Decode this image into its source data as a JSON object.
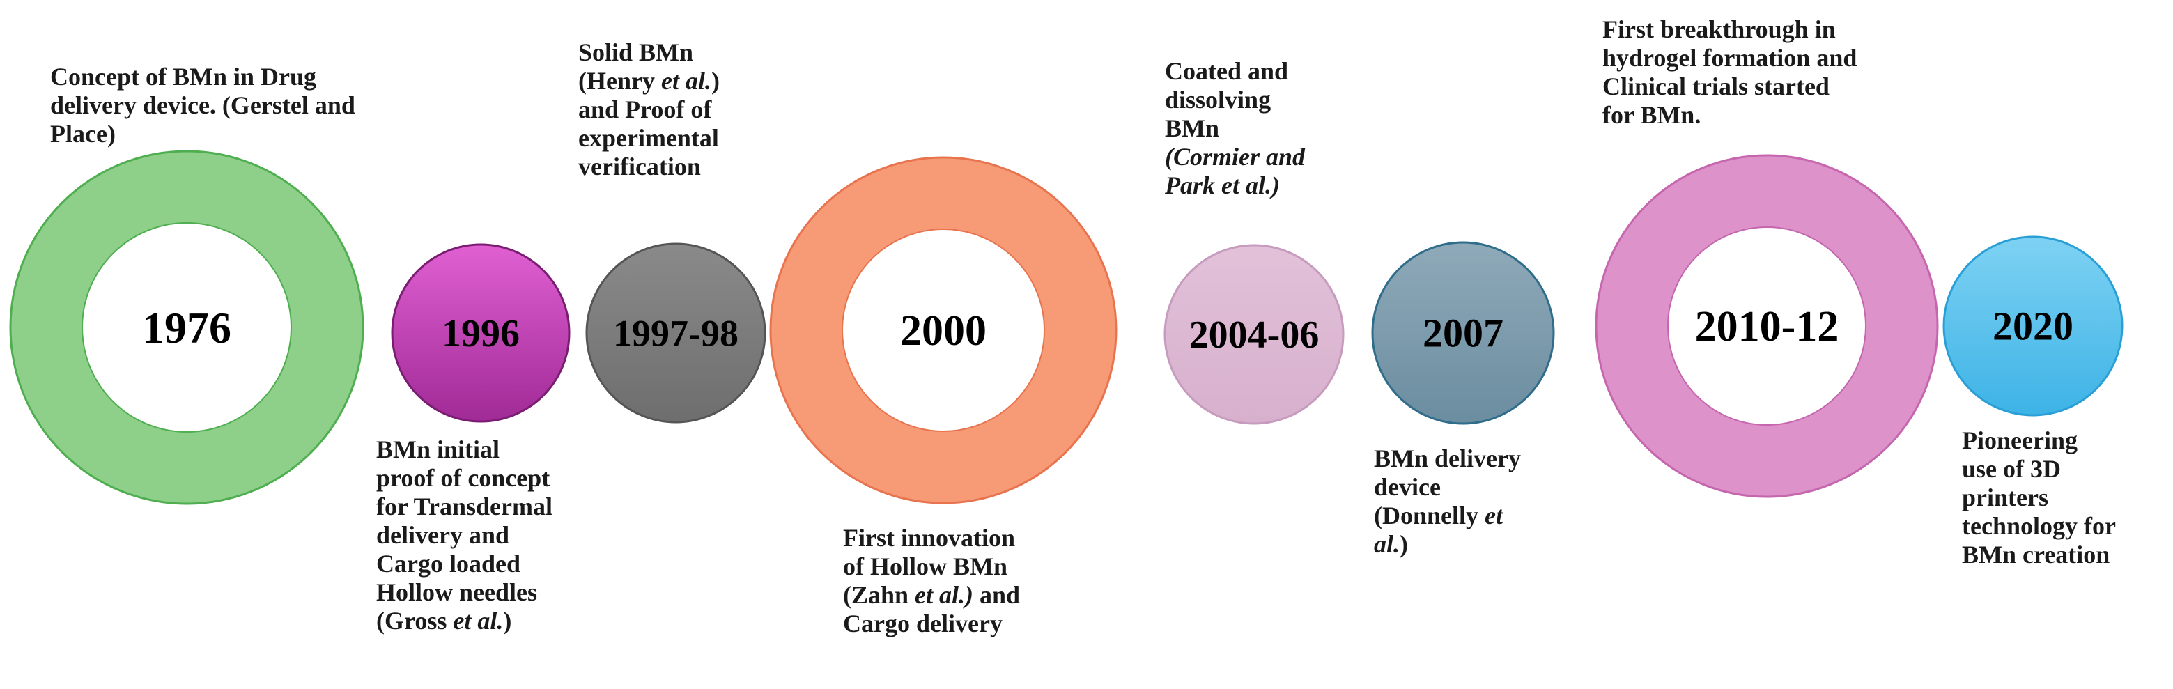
{
  "milestones": [
    {
      "year": "1976",
      "style": "ring",
      "color": "#8ed08a",
      "edge": "#4fae4f",
      "caption": {
        "lines": [
          [
            {
              "t": "Concept of BMn in Drug"
            }
          ],
          [
            {
              "t": "delivery device. (Gerstel and"
            }
          ],
          [
            {
              "t": "Place)"
            }
          ]
        ]
      }
    },
    {
      "year": "1996",
      "style": "disc",
      "color": "#a02a96",
      "color_light": "#e060d2",
      "edge": "#7a1c72",
      "caption": {
        "lines": [
          [
            {
              "t": "BMn initial"
            }
          ],
          [
            {
              "t": "proof of concept"
            }
          ],
          [
            {
              "t": "for Transdermal"
            }
          ],
          [
            {
              "t": "delivery and"
            }
          ],
          [
            {
              "t": "Cargo loaded"
            }
          ],
          [
            {
              "t": "Hollow needles"
            }
          ],
          [
            {
              "t": "(Gross "
            },
            {
              "t": "et al.",
              "i": true
            },
            {
              "t": ")"
            }
          ]
        ]
      }
    },
    {
      "year": "1997-98",
      "style": "disc",
      "color": "#6e6e6e",
      "color_light": "#8a8a8a",
      "edge": "#555555",
      "caption": {
        "lines": [
          [
            {
              "t": "Solid BMn"
            }
          ],
          [
            {
              "t": "(Henry "
            },
            {
              "t": "et al.",
              "i": true
            },
            {
              "t": ")"
            }
          ],
          [
            {
              "t": "and Proof of"
            }
          ],
          [
            {
              "t": "experimental"
            }
          ],
          [
            {
              "t": "verification"
            }
          ]
        ]
      }
    },
    {
      "year": "2000",
      "style": "ring",
      "color": "#f79a76",
      "edge": "#e8744f",
      "caption": {
        "lines": [
          [
            {
              "t": "First innovation"
            }
          ],
          [
            {
              "t": "of Hollow BMn"
            }
          ],
          [
            {
              "t": "(Zahn "
            },
            {
              "t": "et al.)",
              "i": true
            },
            {
              "t": " and"
            }
          ],
          [
            {
              "t": "Cargo delivery"
            }
          ]
        ]
      }
    },
    {
      "year": "2004-06",
      "style": "disc",
      "color": "#d7b0cd",
      "color_light": "#e2c1d9",
      "edge": "#c79bbd",
      "caption": {
        "lines": [
          [
            {
              "t": "Coated and"
            }
          ],
          [
            {
              "t": "dissolving"
            }
          ],
          [
            {
              "t": "BMn"
            }
          ],
          [
            {
              "t": "(Cormier and",
              "i": true
            }
          ],
          [
            {
              "t": "Park et al.)",
              "i": true
            }
          ]
        ]
      }
    },
    {
      "year": "2007",
      "style": "disc",
      "color": "#6b8da0",
      "color_light": "#8faab9",
      "edge": "#2f6d8b",
      "caption": {
        "lines": [
          [
            {
              "t": "BMn delivery"
            }
          ],
          [
            {
              "t": "device"
            }
          ],
          [
            {
              "t": "(Donnelly "
            },
            {
              "t": "et",
              "i": true
            }
          ],
          [
            {
              "t": "al.",
              "i": true
            },
            {
              "t": ")"
            }
          ]
        ]
      }
    },
    {
      "year": "2010-12",
      "style": "ring",
      "color": "#dd92c9",
      "edge": "#c566ae",
      "caption": {
        "lines": [
          [
            {
              "t": "First breakthrough in"
            }
          ],
          [
            {
              "t": "hydrogel formation and"
            }
          ],
          [
            {
              "t": "Clinical trials started"
            }
          ],
          [
            {
              "t": "for BMn."
            }
          ]
        ]
      }
    },
    {
      "year": "2020",
      "style": "disc",
      "color": "#3db3e6",
      "color_light": "#7ed2f3",
      "edge": "#2a9fd6",
      "caption": {
        "lines": [
          [
            {
              "t": "Pioneering"
            }
          ],
          [
            {
              "t": "use of 3D"
            }
          ],
          [
            {
              "t": "printers"
            }
          ],
          [
            {
              "t": "technology for"
            }
          ],
          [
            {
              "t": "BMn creation"
            }
          ]
        ]
      }
    }
  ]
}
